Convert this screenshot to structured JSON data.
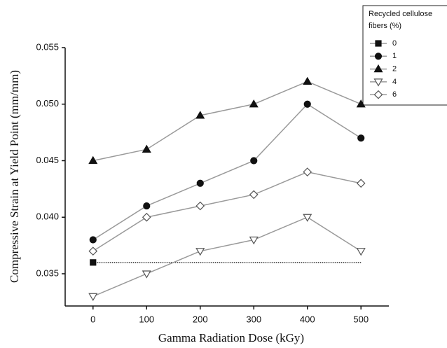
{
  "chart_data": {
    "type": "line",
    "x_label": "Gamma Radiation Dose (kGy)",
    "y_label": "Compressive Strain at Yield Point (mm/mm)",
    "x": [
      0,
      100,
      200,
      300,
      400,
      500
    ],
    "xlim": [
      -52,
      552
    ],
    "xticks": [
      0,
      100,
      200,
      300,
      400,
      500
    ],
    "ylim": [
      0.03215,
      0.055
    ],
    "yticks": [
      0.035,
      {
        "value": 0.04,
        "label": "0.040"
      },
      0.045,
      {
        "value": 0.05,
        "label": "0.050"
      },
      0.055
    ],
    "line_color": "#9a9a9a",
    "legend_title": [
      "Recycled cellulose",
      "fibers (%)"
    ],
    "legend_position": "upper right",
    "series": [
      {
        "name": "0",
        "marker": "square",
        "filled": true,
        "color": "#111111",
        "values": [
          0.036,
          null,
          null,
          null,
          null,
          null
        ]
      },
      {
        "name": "1",
        "marker": "circle",
        "filled": true,
        "color": "#111111",
        "values": [
          0.038,
          0.041,
          0.043,
          0.045,
          0.05,
          0.047
        ]
      },
      {
        "name": "2",
        "marker": "triangle-up",
        "filled": true,
        "color": "#111111",
        "values": [
          0.045,
          0.046,
          0.049,
          0.05,
          0.052,
          0.05
        ]
      },
      {
        "name": "4",
        "marker": "triangle-down",
        "filled": false,
        "color": "#555555",
        "values": [
          0.033,
          0.035,
          0.037,
          0.038,
          0.04,
          0.037
        ]
      },
      {
        "name": "6",
        "marker": "diamond",
        "filled": false,
        "color": "#555555",
        "values": [
          0.037,
          0.04,
          0.041,
          0.042,
          0.044,
          0.043
        ]
      }
    ],
    "hlines": [
      {
        "y": 0.036,
        "xlim": [
          0,
          500
        ],
        "dash": "dotted",
        "color": "#333333"
      }
    ]
  }
}
